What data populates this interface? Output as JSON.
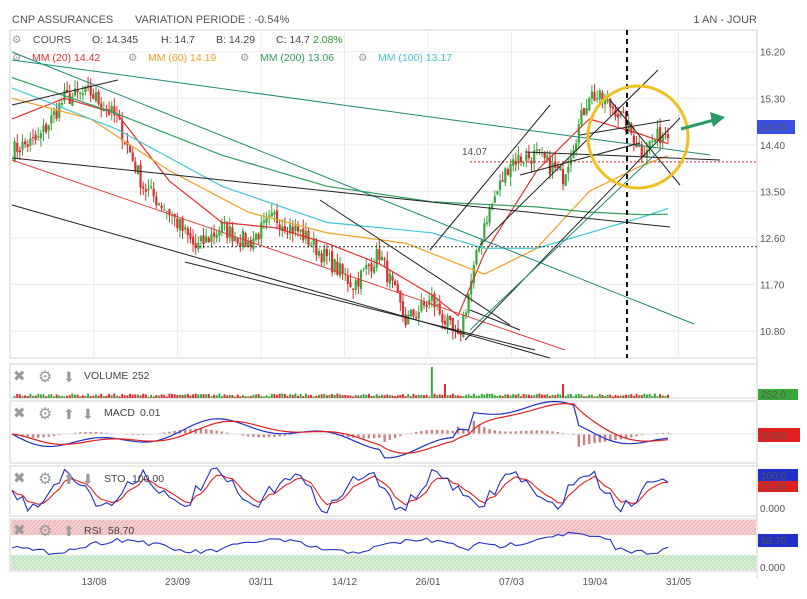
{
  "header": {
    "title": "CNP ASSURANCES",
    "variation": "VARIATION PERIODE : -0.54%",
    "period": "1 AN - JOUR"
  },
  "ohlc": {
    "label": "COURS",
    "open": "O: 14.345",
    "high": "H: 14.7",
    "low": "B: 14.29",
    "close": "C: 14.7",
    "change": "2.08%"
  },
  "moving_averages": [
    {
      "label": "MM (20)",
      "value": "14.42",
      "color": "#e03030"
    },
    {
      "label": "MM (60)",
      "value": "14.19",
      "color": "#f0a020"
    },
    {
      "label": "MM (200)",
      "value": "13.06",
      "color": "#30a060"
    },
    {
      "label": "MM (100)",
      "value": "13.17",
      "color": "#40c8d8"
    }
  ],
  "price_axis": {
    "ticks": [
      "16.20",
      "15.30",
      "14.40",
      "13.50",
      "12.60",
      "11.70",
      "10.80"
    ],
    "last_price": "14.70",
    "level_label": "14.07"
  },
  "date_axis": [
    "13/08",
    "23/09",
    "03/11",
    "14/12",
    "26/01",
    "07/03",
    "19/04",
    "31/05"
  ],
  "volume": {
    "label": "VOLUME",
    "value": "252",
    "badge": "252.0"
  },
  "macd": {
    "label": "MACD",
    "value": "0.01",
    "badge": "0.010"
  },
  "sto": {
    "label": "STO",
    "value": "100.00",
    "badge_top": "100.0",
    "badge_bottom": "71.50",
    "tick": "0.000"
  },
  "rsi": {
    "label": "RSI",
    "value": "58.70",
    "badge": "58.70",
    "tick": "0.000"
  },
  "chart_data": {
    "type": "candlestick",
    "title": "CNP ASSURANCES",
    "ylim": [
      10.3,
      16.6
    ],
    "x_ticks": [
      "13/08",
      "23/09",
      "03/11",
      "14/12",
      "26/01",
      "07/03",
      "19/04",
      "31/05"
    ],
    "series": [
      {
        "name": "COURS",
        "x_index": [
          0,
          10,
          20,
          30,
          40,
          50,
          60,
          70,
          80,
          90,
          100,
          110,
          120,
          130,
          140,
          150,
          160,
          170,
          180,
          190,
          200,
          210,
          220,
          230,
          240,
          250
        ],
        "values": [
          14.3,
          14.5,
          15.3,
          15.4,
          14.9,
          13.6,
          13.1,
          12.4,
          12.8,
          12.5,
          13.0,
          12.7,
          12.2,
          11.7,
          12.3,
          11.0,
          11.4,
          10.6,
          12.9,
          14.1,
          14.2,
          13.8,
          15.4,
          15.1,
          14.3,
          14.7
        ]
      },
      {
        "name": "MM (20)",
        "x_index": [
          0,
          20,
          40,
          60,
          80,
          100,
          120,
          140,
          160,
          170,
          180,
          200,
          220,
          240,
          250
        ],
        "values": [
          14.9,
          15.3,
          15.0,
          13.7,
          12.9,
          12.8,
          12.5,
          12.1,
          11.5,
          11.1,
          12.3,
          13.9,
          14.9,
          14.6,
          14.42
        ]
      },
      {
        "name": "MM (60)",
        "x_index": [
          0,
          30,
          60,
          90,
          120,
          150,
          180,
          200,
          220,
          240,
          250
        ],
        "values": [
          15.3,
          14.9,
          13.9,
          13.1,
          12.7,
          12.5,
          11.9,
          12.4,
          13.5,
          14.0,
          14.19
        ]
      },
      {
        "name": "MM (100)",
        "x_index": [
          0,
          40,
          80,
          120,
          160,
          180,
          200,
          220,
          240,
          250
        ],
        "values": [
          15.5,
          14.7,
          13.6,
          12.9,
          12.7,
          12.4,
          12.4,
          12.7,
          13.0,
          13.17
        ]
      },
      {
        "name": "MM (200)",
        "x_index": [
          0,
          40,
          80,
          120,
          160,
          200,
          220,
          240,
          250
        ],
        "values": [
          15.7,
          15.0,
          14.2,
          13.6,
          13.3,
          13.2,
          13.1,
          13.05,
          13.06
        ]
      }
    ],
    "reference_levels": [
      14.07,
      12.43
    ]
  }
}
